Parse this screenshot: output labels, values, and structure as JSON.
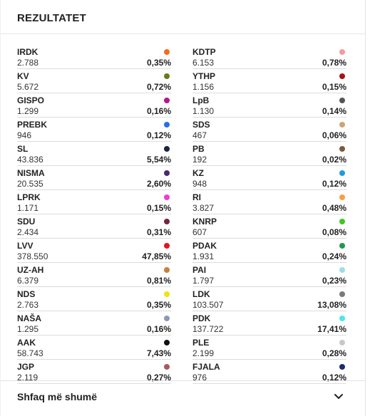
{
  "header": {
    "title": "REZULTATET"
  },
  "columns": [
    [
      {
        "name": "IRDK",
        "votes": "2.788",
        "pct": "0,35%",
        "color": "#f26b1d"
      },
      {
        "name": "KV",
        "votes": "5.672",
        "pct": "0,72%",
        "color": "#6b7a1f"
      },
      {
        "name": "GISPO",
        "votes": "1.299",
        "pct": "0,16%",
        "color": "#b0188e"
      },
      {
        "name": "PREBK",
        "votes": "946",
        "pct": "0,12%",
        "color": "#2a6ee0"
      },
      {
        "name": "SL",
        "votes": "43.836",
        "pct": "5,54%",
        "color": "#1c2340"
      },
      {
        "name": "NISMA",
        "votes": "20.535",
        "pct": "2,60%",
        "color": "#4a2a6e"
      },
      {
        "name": "LPRK",
        "votes": "1.171",
        "pct": "0,15%",
        "color": "#e83ed6"
      },
      {
        "name": "SDU",
        "votes": "2.434",
        "pct": "0,31%",
        "color": "#7a2140"
      },
      {
        "name": "LVV",
        "votes": "378.550",
        "pct": "47,85%",
        "color": "#e3161e"
      },
      {
        "name": "UZ-AH",
        "votes": "6.379",
        "pct": "0,81%",
        "color": "#c8803d"
      },
      {
        "name": "NDS",
        "votes": "2.763",
        "pct": "0,35%",
        "color": "#f2e20f"
      },
      {
        "name": "NAŠA",
        "votes": "1.295",
        "pct": "0,16%",
        "color": "#8a9ab8"
      },
      {
        "name": "AAK",
        "votes": "58.743",
        "pct": "7,43%",
        "color": "#111111"
      },
      {
        "name": "JGP",
        "votes": "2.119",
        "pct": "0,27%",
        "color": "#a85a5a"
      }
    ],
    [
      {
        "name": "KDTP",
        "votes": "6.153",
        "pct": "0,78%",
        "color": "#f29aa0"
      },
      {
        "name": "YTHP",
        "votes": "1.156",
        "pct": "0,15%",
        "color": "#a3141e"
      },
      {
        "name": "LpB",
        "votes": "1.130",
        "pct": "0,14%",
        "color": "#555555"
      },
      {
        "name": "SDS",
        "votes": "467",
        "pct": "0,06%",
        "color": "#c8a878"
      },
      {
        "name": "PB",
        "votes": "192",
        "pct": "0,02%",
        "color": "#7a5a3a"
      },
      {
        "name": "KZ",
        "votes": "948",
        "pct": "0,12%",
        "color": "#1e9be0"
      },
      {
        "name": "RI",
        "votes": "3.827",
        "pct": "0,48%",
        "color": "#f7a040"
      },
      {
        "name": "KNRP",
        "votes": "607",
        "pct": "0,08%",
        "color": "#3ec81e"
      },
      {
        "name": "PDAK",
        "votes": "1.931",
        "pct": "0,24%",
        "color": "#1e9a4e"
      },
      {
        "name": "PAI",
        "votes": "1.797",
        "pct": "0,23%",
        "color": "#a0dce8"
      },
      {
        "name": "LDK",
        "votes": "103.507",
        "pct": "13,08%",
        "color": "#7a7a7a"
      },
      {
        "name": "PDK",
        "votes": "137.722",
        "pct": "17,41%",
        "color": "#4ee8e8"
      },
      {
        "name": "PLE",
        "votes": "2.199",
        "pct": "0,28%",
        "color": "#c8c8c8"
      },
      {
        "name": "FJALA",
        "votes": "976",
        "pct": "0,12%",
        "color": "#1e2a6e"
      }
    ]
  ],
  "footer": {
    "more_label": "Shfaq më shumë",
    "chevron_icon": "chevron-down-icon"
  }
}
